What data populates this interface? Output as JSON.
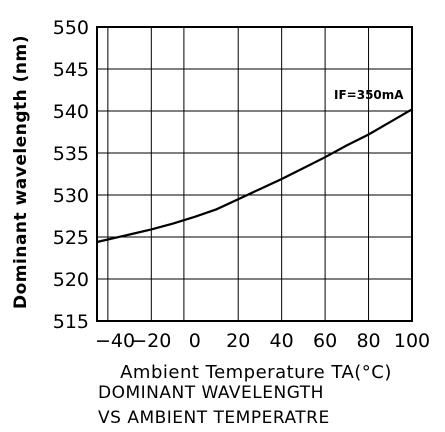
{
  "chart_data": {
    "type": "line",
    "xlabel": "Ambient Temperature TA(°C)",
    "ylabel": "Dominant wavelength (nm)",
    "xlim": [
      -45,
      100
    ],
    "ylim": [
      515,
      550
    ],
    "xticks": [
      -40,
      -20,
      0,
      20,
      40,
      60,
      80,
      100
    ],
    "xtick_labels": [
      "−40",
      "−20",
      "0",
      "20",
      "40",
      "60",
      "80",
      "100"
    ],
    "yticks": [
      515,
      520,
      525,
      530,
      535,
      540,
      545,
      550
    ],
    "yvgrid": [
      -40,
      -20,
      -5,
      20,
      40,
      60,
      80,
      100
    ],
    "grid": true,
    "annotation": "IF=350mA",
    "series": [
      {
        "x": [
          -45,
          -30,
          -20,
          -10,
          0,
          10,
          20,
          30,
          40,
          50,
          60,
          70,
          80,
          90,
          100
        ],
        "y": [
          524.4,
          525.3,
          525.9,
          526.6,
          527.4,
          528.3,
          529.5,
          530.7,
          531.9,
          533.2,
          534.5,
          535.9,
          537.2,
          538.7,
          540.2
        ],
        "color": "#000000"
      }
    ]
  },
  "caption": {
    "line1": "DOMINANT WAVELENGTH",
    "line2": "VS AMBIENT TEMPERATRE"
  }
}
